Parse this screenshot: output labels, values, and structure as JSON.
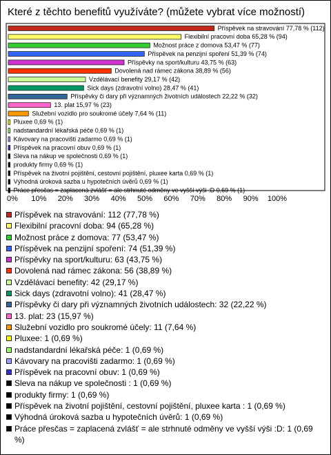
{
  "chart_data": {
    "type": "bar",
    "orientation": "horizontal",
    "title": "Které z těchto benefitů využíváte? (můžete vybrat více možností)",
    "categories": [
      "Příspěvek na stravování",
      "Flexibilní pracovní doba",
      "Možnost práce z domova",
      "Příspěvek na penzijní spoření",
      "Příspěvky na sport/kulturu",
      "Dovolená nad rámec zákona",
      "Vzdělávací benefity",
      "Sick days (zdravotní volno)",
      "Příspěvky či dary při významných životních událostech",
      "13. plat",
      "Služební vozidlo pro soukromé účely",
      "Pluxee",
      "nadstandardní lékařská péče",
      "Kávovary na pracovišti zadarmo",
      "Příspěvek na pracovní obuv",
      "Sleva na nákup ve společnosti",
      "produkty firmy",
      "Příspěvek na životní pojištění, cestovní pojištění, pluxee karta",
      "Výhodná úroková sazba u hypotečních úvěrů",
      "Práce přesčas = zaplacená zvlášť = ale strhnuté odměny ve vyšší výši :D"
    ],
    "values": [
      77.78,
      65.28,
      53.47,
      51.39,
      43.75,
      38.89,
      29.17,
      28.47,
      22.22,
      15.97,
      7.64,
      0.69,
      0.69,
      0.69,
      0.69,
      0.69,
      0.69,
      0.69,
      0.69,
      0.69
    ],
    "value_labels": [
      "Příspěvek na stravování 77,78 % (112)",
      "Flexibilní pracovní doba 65,28 % (94)",
      "Možnost práce z domova 53,47 % (77)",
      "Příspěvek na penzijní spoření 51,39 % (74)",
      "Příspěvky na sport/kulturu 43,75 % (63)",
      "Dovolená nad rámec zákona 38,89 % (56)",
      "Vzdělávací benefity 29,17 % (42)",
      "Sick days (zdravotní volno) 28,47 % (41)",
      "Příspěvky či dary při významných životních událostech 22,22 % (32)",
      "13. plat 15,97 % (23)",
      "Služební vozidlo pro soukromé účely 7,64 % (11)",
      "Pluxee 0,69 % (1)",
      "nadstandardní lékařská péče 0,69 % (1)",
      "Kávovary na pracovišti zadarmo 0,69 % (1)",
      "Příspěvek na pracovní obuv 0,69 % (1)",
      "Sleva na nákup ve společnosti 0,69 % (1)",
      "produkty firmy 0,69 % (1)",
      "Příspěvek na životní pojištění, cestovní pojištění, pluxee karta 0,69 % (1)",
      "Výhodná úroková sazba u hypotečních úvěrů 0,69 % (1)",
      "Práce přesčas = zaplacená zvlášť = ale strhnuté odměny ve vyšší výši :D 0,69 % (1)"
    ],
    "legend_labels": [
      "Příspěvek na stravování: 112 (77,78 %)",
      "Flexibilní pracovní doba: 94 (65,28 %)",
      "Možnost práce z domova: 77 (53,47 %)",
      "Příspěvek na penzijní spoření: 74 (51,39 %)",
      "Příspěvky na sport/kulturu: 63 (43,75 %)",
      "Dovolená nad rámec zákona: 56 (38,89 %)",
      "Vzdělávací benefity: 42 (29,17 %)",
      "Sick days (zdravotní volno): 41 (28,47 %)",
      "Příspěvky či dary při významných životních událostech: 32 (22,22 %)",
      "13. plat: 23 (15,97 %)",
      "Služební vozidlo pro soukromé účely: 11 (7,64 %)",
      "Pluxee: 1 (0,69 %)",
      "nadstandardní lékařská péče: 1 (0,69 %)",
      "Kávovary na pracovišti zadarmo: 1 (0,69 %)",
      "Příspěvek na pracovní obuv: 1 (0,69 %)",
      "Sleva na nákup ve společnosti : 1 (0,69 %)",
      "produkty firmy: 1 (0,69 %)",
      "Příspěvek na životní pojištění, cestovní pojištění, pluxee karta : 1 (0,69 %)",
      "Výhodná úroková sazba u hypotečních úvěrů: 1 (0,69 %)",
      "Práce přesčas = zaplacená zvlášť = ale strhnuté odměny ve vyšší výši :D: 1 (0,69 %)"
    ],
    "colors": [
      "#c0281c",
      "#ffff66",
      "#33cc33",
      "#3366ff",
      "#cc33cc",
      "#ff3300",
      "#ccff99",
      "#009966",
      "#336699",
      "#ff66cc",
      "#ff9900",
      "#ffff00",
      "#99ff66",
      "#9999ff",
      "#3333cc",
      "#000000",
      "#000000",
      "#000000",
      "#000000",
      "#000000"
    ],
    "xlim": [
      0,
      100
    ],
    "xticks": [
      {
        "value": 0,
        "label": "0%"
      },
      {
        "value": 10,
        "label": "10%"
      },
      {
        "value": 20,
        "label": "20%"
      },
      {
        "value": 30,
        "label": "30%"
      },
      {
        "value": 40,
        "label": "40%"
      },
      {
        "value": 50,
        "label": "50%"
      },
      {
        "value": 60,
        "label": "60%"
      },
      {
        "value": 70,
        "label": "70%"
      },
      {
        "value": 80,
        "label": "80%"
      },
      {
        "value": 90,
        "label": "90%"
      },
      {
        "value": 100,
        "label": "100%"
      }
    ]
  }
}
